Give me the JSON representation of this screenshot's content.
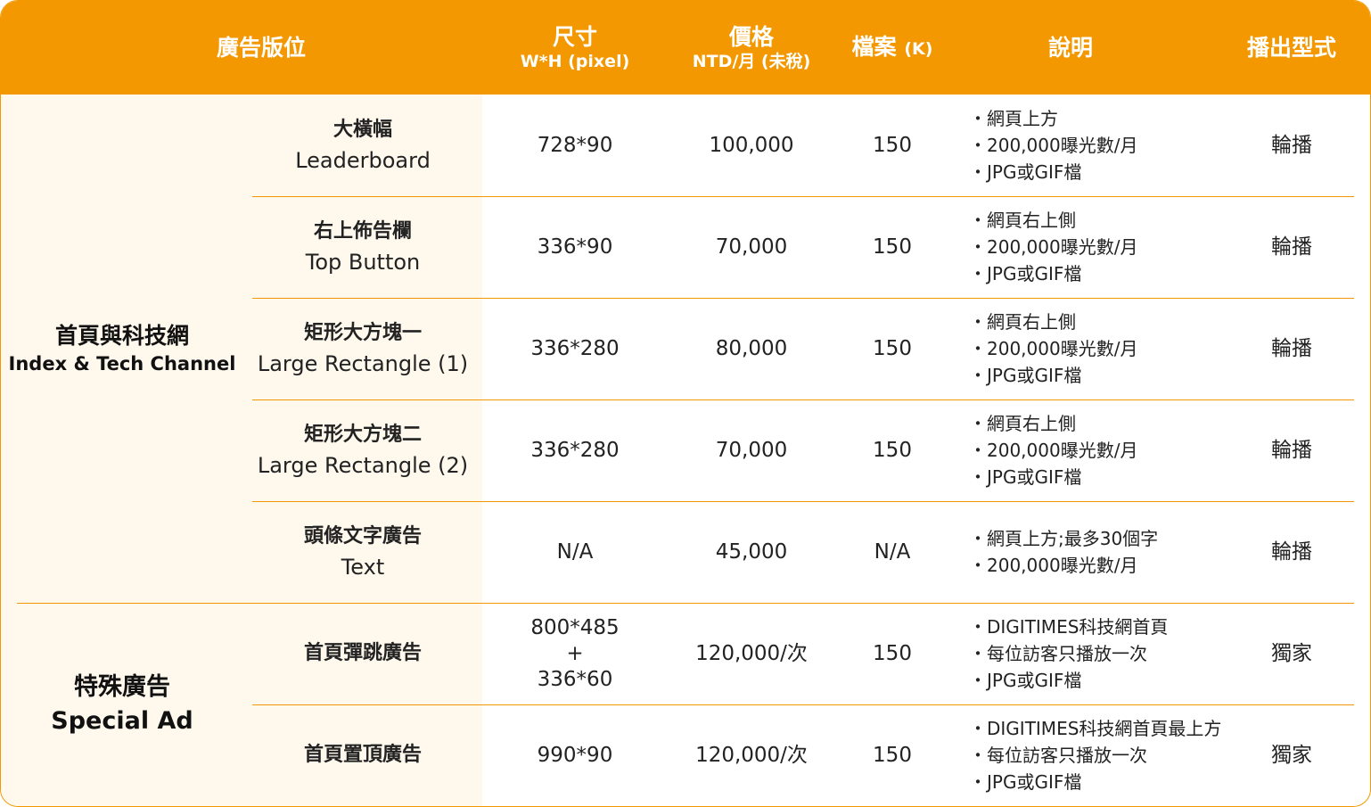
{
  "header": {
    "position": "廣告版位",
    "size": "尺寸",
    "size_sub": "W*H (pixel)",
    "price": "價格",
    "price_sub": "NTD/月 (未稅)",
    "file": "檔案",
    "file_unit": "(K)",
    "desc": "說明",
    "mode": "播出型式"
  },
  "groups": [
    {
      "zh": "首頁與科技網",
      "en": "Index & Tech Channel"
    },
    {
      "zh": "特殊廣告",
      "en": "Special Ad"
    }
  ],
  "rows": [
    {
      "zh": "大橫幅",
      "en": "Leaderboard",
      "size": [
        "728*90"
      ],
      "price": "100,000",
      "file": "150",
      "desc": [
        "網頁上方",
        "200,000曝光數/月",
        "JPG或GIF檔"
      ],
      "mode": "輪播"
    },
    {
      "zh": "右上佈告欄",
      "en": "Top Button",
      "size": [
        "336*90"
      ],
      "price": "70,000",
      "file": "150",
      "desc": [
        "網頁右上側",
        "200,000曝光數/月",
        "JPG或GIF檔"
      ],
      "mode": "輪播"
    },
    {
      "zh": "矩形大方塊一",
      "en": "Large Rectangle (1)",
      "size": [
        "336*280"
      ],
      "price": "80,000",
      "file": "150",
      "desc": [
        "網頁右上側",
        "200,000曝光數/月",
        "JPG或GIF檔"
      ],
      "mode": "輪播"
    },
    {
      "zh": "矩形大方塊二",
      "en": "Large Rectangle (2)",
      "size": [
        "336*280"
      ],
      "price": "70,000",
      "file": "150",
      "desc": [
        "網頁右上側",
        "200,000曝光數/月",
        "JPG或GIF檔"
      ],
      "mode": "輪播"
    },
    {
      "zh": "頭條文字廣告",
      "en": "Text",
      "size": [
        "N/A"
      ],
      "price": "45,000",
      "file": "N/A",
      "desc": [
        "網頁上方;最多30個字",
        "200,000曝光數/月"
      ],
      "mode": "輪播"
    },
    {
      "zh": "首頁彈跳廣告",
      "en": "",
      "size": [
        "800*485",
        "+",
        "336*60"
      ],
      "price": "120,000/次",
      "file": "150",
      "desc": [
        "DIGITIMES科技網首頁",
        "每位訪客只播放一次",
        "JPG或GIF檔"
      ],
      "mode": "獨家"
    },
    {
      "zh": "首頁置頂廣告",
      "en": "",
      "size": [
        "990*90"
      ],
      "price": "120,000/次",
      "file": "150",
      "desc": [
        "DIGITIMES科技網首頁最上方",
        "每位訪客只播放一次",
        "JPG或GIF檔"
      ],
      "mode": "獨家"
    }
  ],
  "colors": {
    "accent": "#f39800",
    "left_bg": "#fef8ed",
    "header_text": "#ffffff"
  }
}
